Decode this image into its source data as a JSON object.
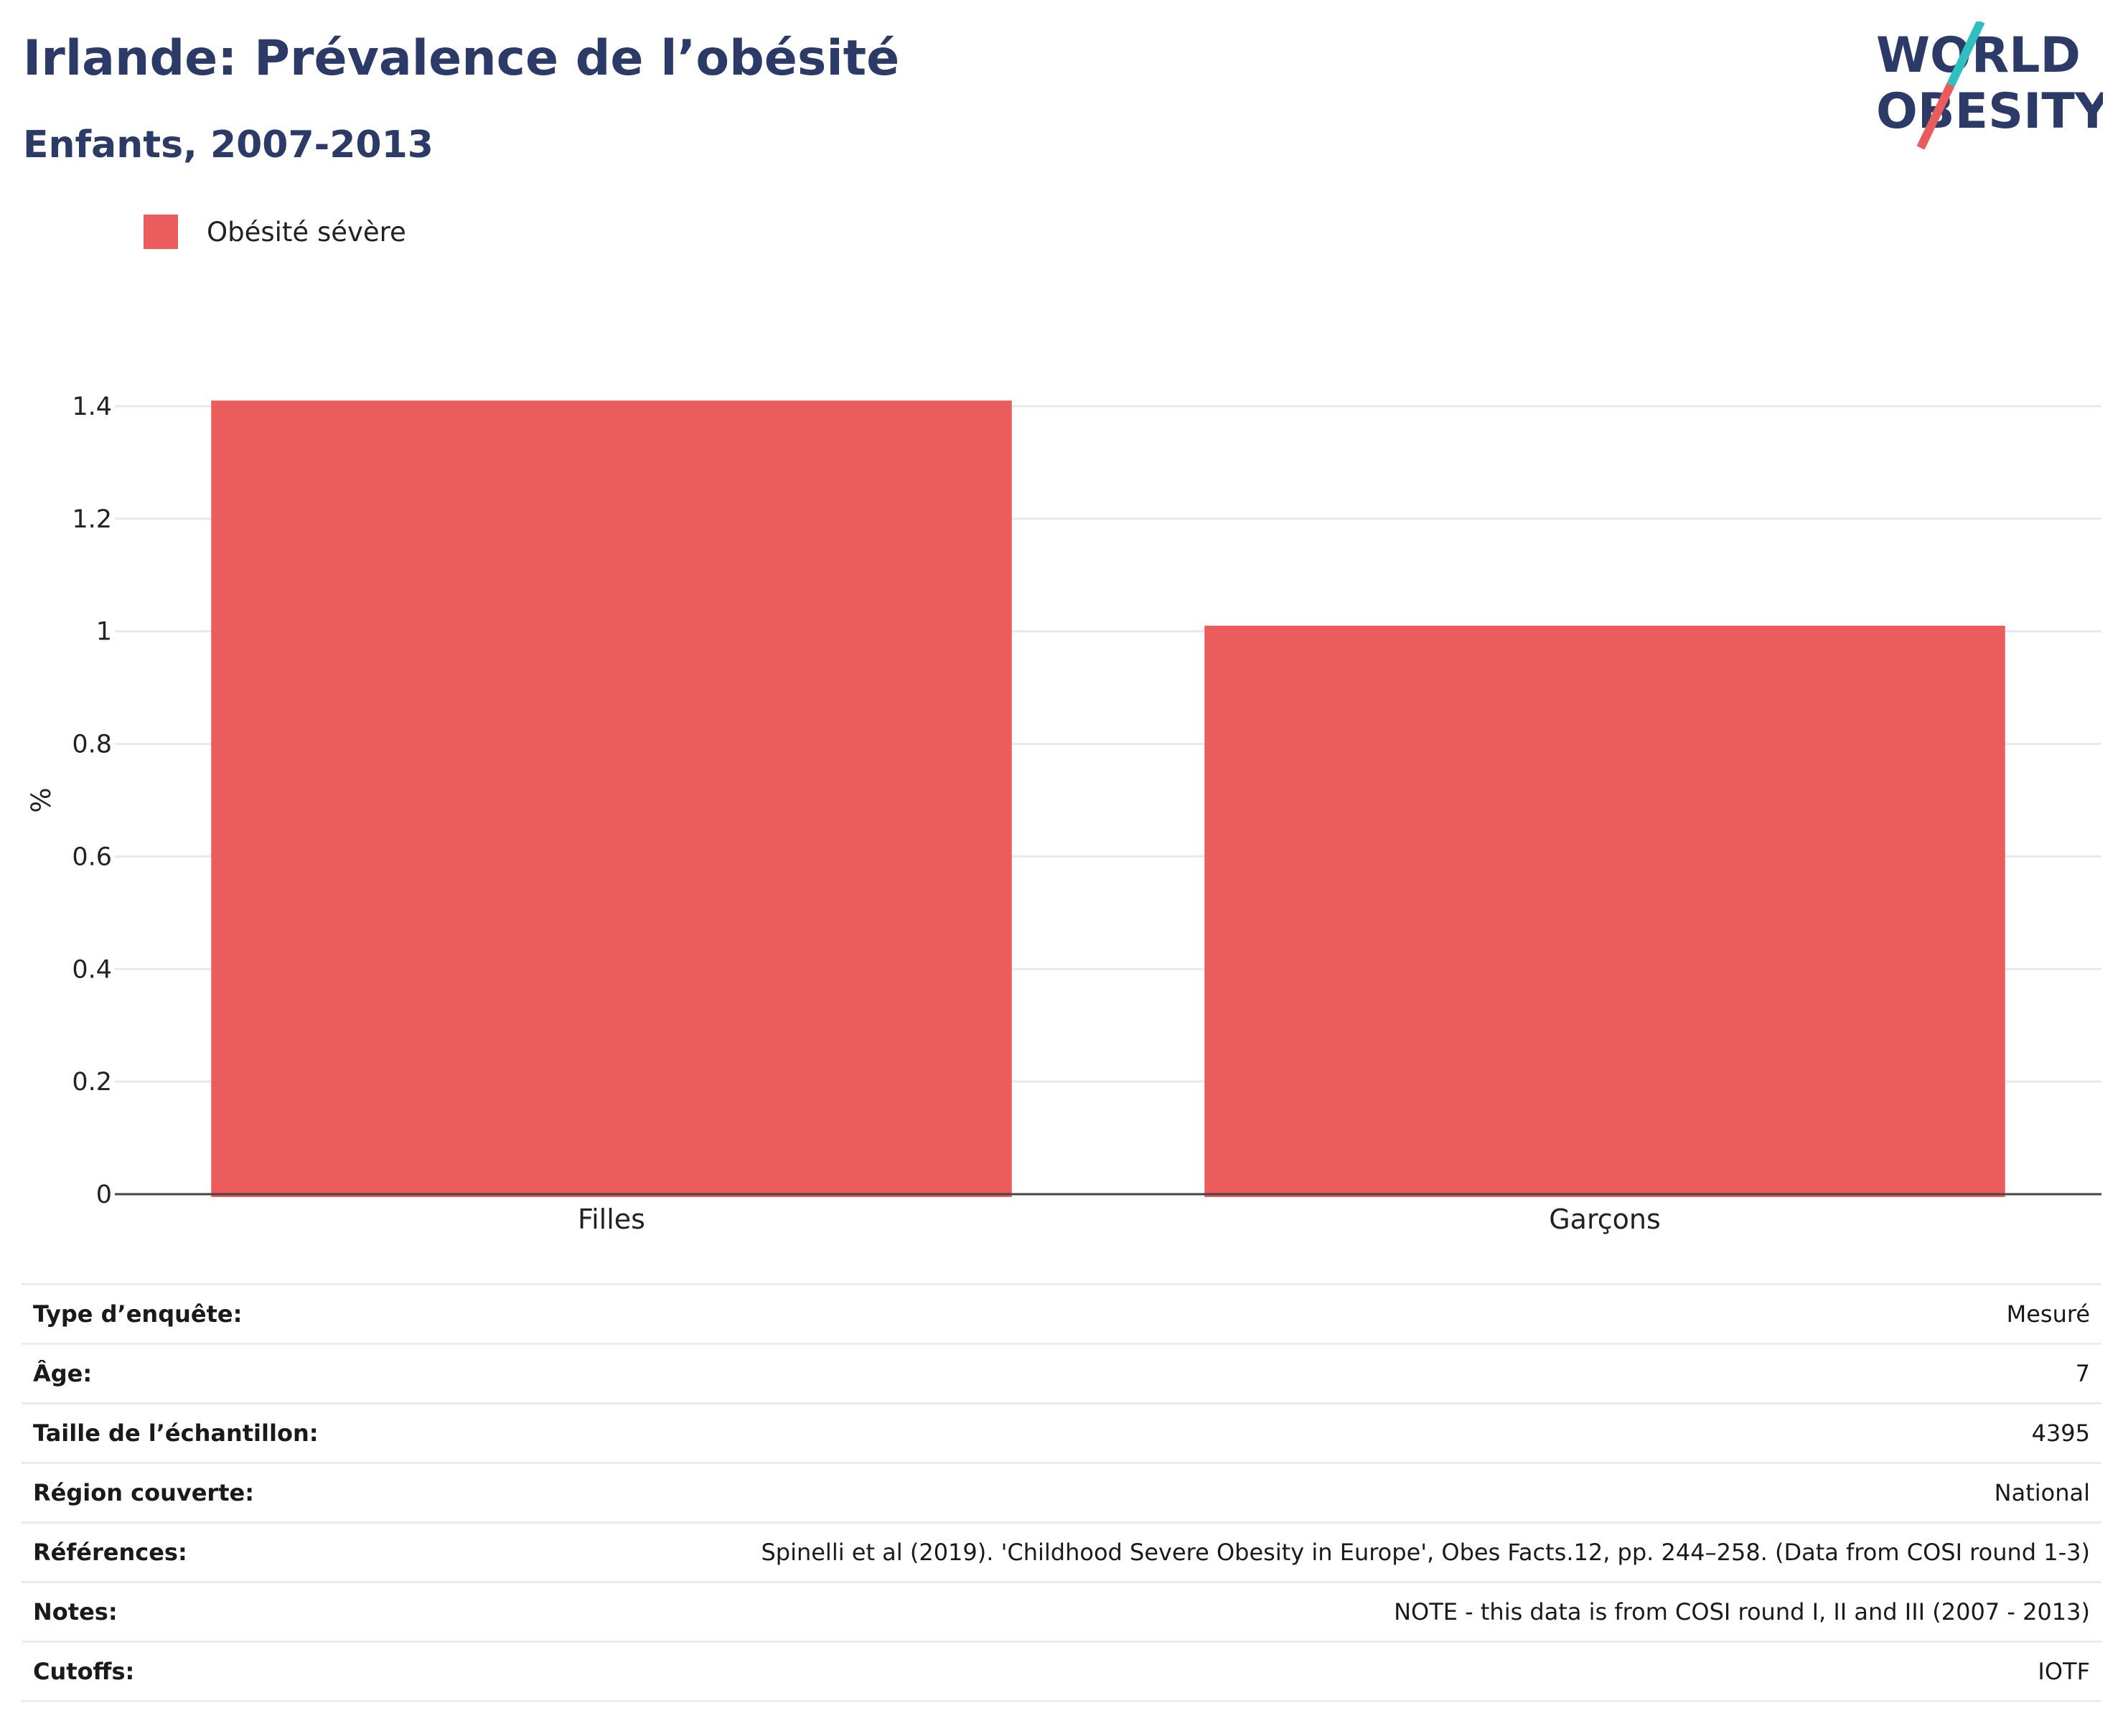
{
  "header": {
    "title": "Irlande: Prévalence de l’obésité",
    "subtitle": "Enfants, 2007-2013"
  },
  "logo": {
    "line1": "WORLD",
    "line2": "OBESITY",
    "colors": {
      "text": "#2b3a67",
      "slash_top": "#2fbfbf",
      "slash_bottom": "#e85c5c"
    }
  },
  "colors": {
    "bar": "#eb5c5c",
    "grid": "#e6e9f2",
    "axis": "#444444",
    "text": "#2b3a67"
  },
  "chart_data": {
    "type": "bar",
    "title": "Irlande: Prévalence de l’obésité",
    "subtitle": "Enfants, 2007-2013",
    "categories": [
      "Filles",
      "Garçons"
    ],
    "series": [
      {
        "name": "Obésité sévère",
        "values": [
          1.41,
          1.01
        ],
        "color": "#eb5c5c"
      }
    ],
    "xlabel": "",
    "ylabel": "%",
    "ylim": [
      0,
      1.4
    ],
    "yticks": [
      0,
      0.2,
      0.4,
      0.6,
      0.8,
      1,
      1.2,
      1.4
    ],
    "ytick_labels": [
      "0",
      "0.2",
      "0.4",
      "0.6",
      "0.8",
      "1",
      "1.2",
      "1.4"
    ],
    "grid": true,
    "legend_position": "top-left"
  },
  "info_table": [
    {
      "label": "Type d’enquête:",
      "value": "Mesuré"
    },
    {
      "label": "Âge:",
      "value": "7"
    },
    {
      "label": "Taille de l’échantillon:",
      "value": "4395"
    },
    {
      "label": "Région couverte:",
      "value": "National"
    },
    {
      "label": "Références:",
      "value": "Spinelli et al (2019). 'Childhood Severe Obesity in Europe', Obes Facts.12, pp. 244–258. (Data from COSI round 1-3)"
    },
    {
      "label": "Notes:",
      "value": "NOTE - this data is from COSI round I, II and III (2007 - 2013)"
    },
    {
      "label": "Cutoffs:",
      "value": "IOTF"
    }
  ]
}
